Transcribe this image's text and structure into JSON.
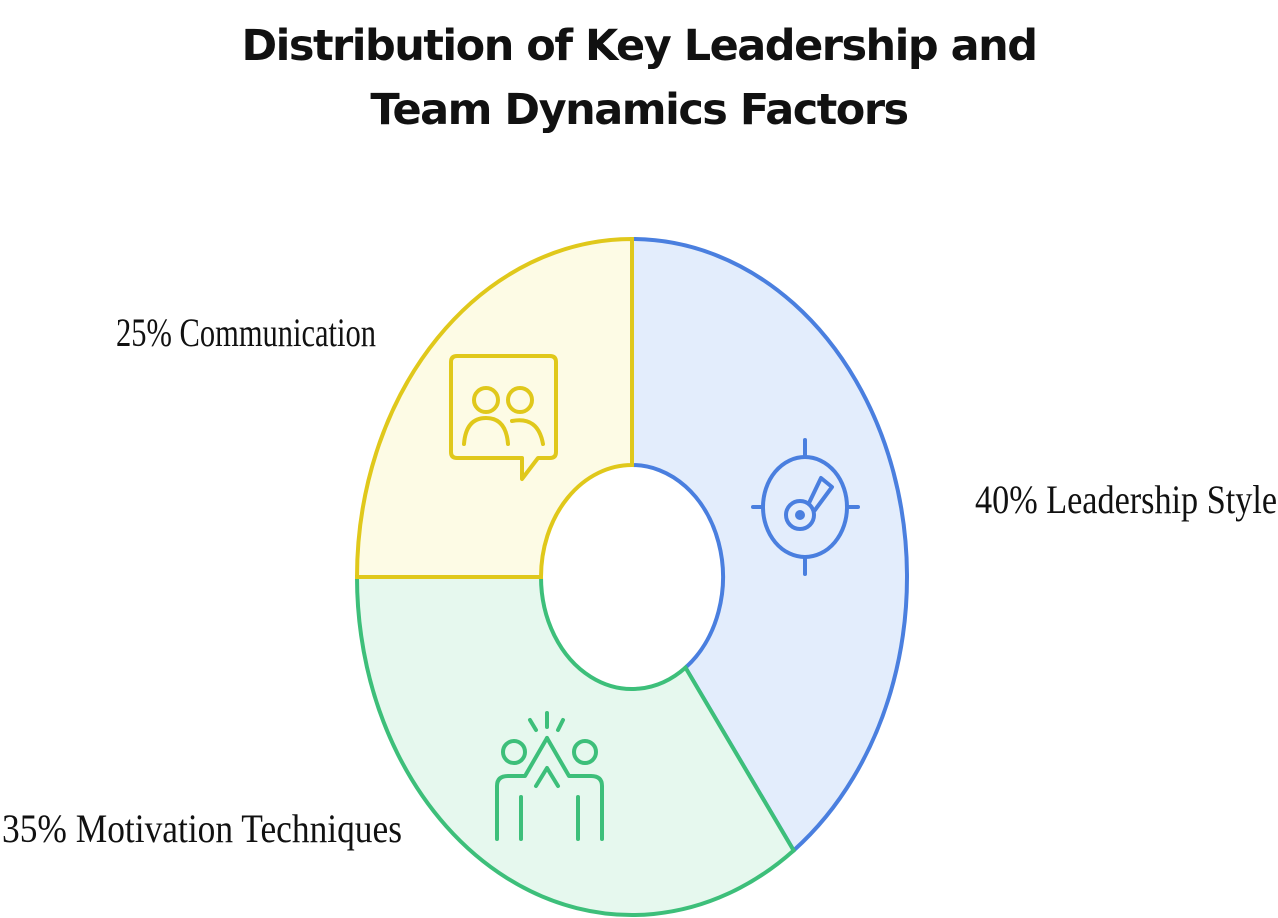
{
  "chart_data": {
    "type": "pie",
    "title_lines": [
      "Distribution of Key Leadership and",
      "Team Dynamics Factors"
    ],
    "slices": [
      {
        "label": "Leadership Style",
        "value": 40,
        "label_text": "40% Leadership Style",
        "icon": "target-key-icon",
        "stroke": "#4a7fdf",
        "fill": "#e3edfc"
      },
      {
        "label": "Motivation Techniques",
        "value": 35,
        "label_text": "35% Motivation Techniques",
        "icon": "high-five-icon",
        "stroke": "#3dbf7a",
        "fill": "#e6f8ee"
      },
      {
        "label": "Communication",
        "value": 25,
        "label_text": "25% Communication",
        "icon": "chat-people-icon",
        "stroke": "#e0c81b",
        "fill": "#fdfbe5"
      }
    ]
  }
}
